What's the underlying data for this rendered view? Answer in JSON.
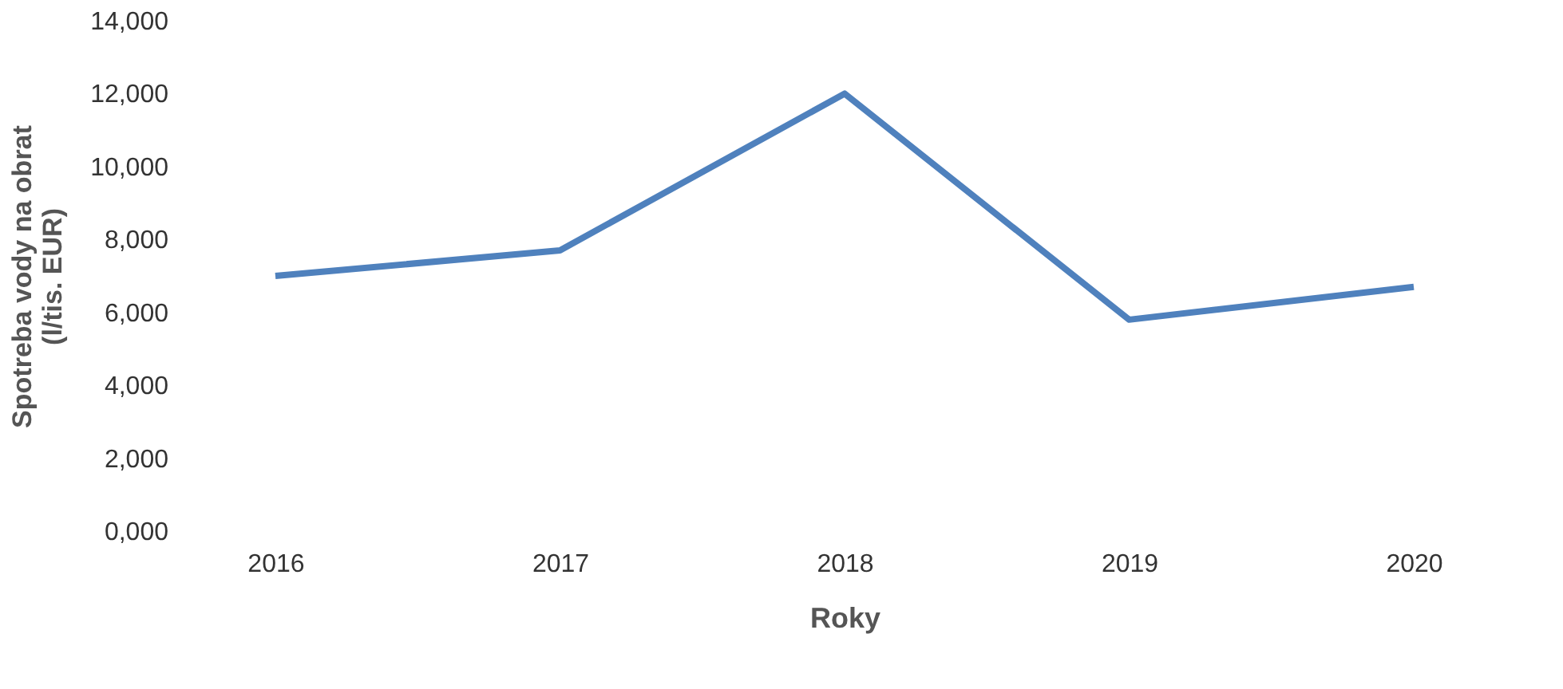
{
  "chart_data": {
    "type": "line",
    "xlabel": "Roky",
    "ylabel": "Spotreba vody na obrat\n(l/tis. EUR)",
    "categories": [
      "2016",
      "2017",
      "2018",
      "2019",
      "2020"
    ],
    "series": [
      {
        "color": "#4f81bd",
        "values": [
          7000,
          7700,
          12000,
          5800,
          6700
        ]
      }
    ],
    "ylim": [
      0,
      14000
    ],
    "yticks": [
      {
        "value": 0,
        "label": "0,000"
      },
      {
        "value": 2000,
        "label": "2,000"
      },
      {
        "value": 4000,
        "label": "4,000"
      },
      {
        "value": 6000,
        "label": "6,000"
      },
      {
        "value": 8000,
        "label": "8,000"
      },
      {
        "value": 10000,
        "label": "10,000"
      },
      {
        "value": 12000,
        "label": "12,000"
      },
      {
        "value": 14000,
        "label": "14,000"
      }
    ],
    "grid": false,
    "legend": false,
    "marker": "none",
    "line_style": "solid"
  }
}
